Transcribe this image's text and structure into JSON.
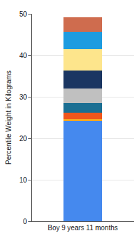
{
  "chart_data": {
    "type": "bar",
    "stacked": true,
    "categories": [
      "Boy 9 years 11 months"
    ],
    "y_label": "Percentile Weight in Kilograms",
    "series": [
      {
        "color": "#4589ee",
        "values": [
          24.1
        ]
      },
      {
        "color": "#f5a623",
        "values": [
          0.5
        ]
      },
      {
        "color": "#f0561c",
        "values": [
          1.6
        ]
      },
      {
        "color": "#1b6f93",
        "values": [
          2.3
        ]
      },
      {
        "color": "#c0c0c0",
        "values": [
          3.5
        ]
      },
      {
        "color": "#1b3662",
        "values": [
          4.3
        ]
      },
      {
        "color": "#fde58c",
        "values": [
          5.2
        ]
      },
      {
        "color": "#1e9ce0",
        "values": [
          4.2
        ]
      },
      {
        "color": "#cf6c4e",
        "values": [
          3.4
        ]
      }
    ],
    "ylim": [
      0,
      50
    ],
    "yticks": [
      0,
      10,
      20,
      30,
      40,
      50
    ],
    "grid": true
  }
}
